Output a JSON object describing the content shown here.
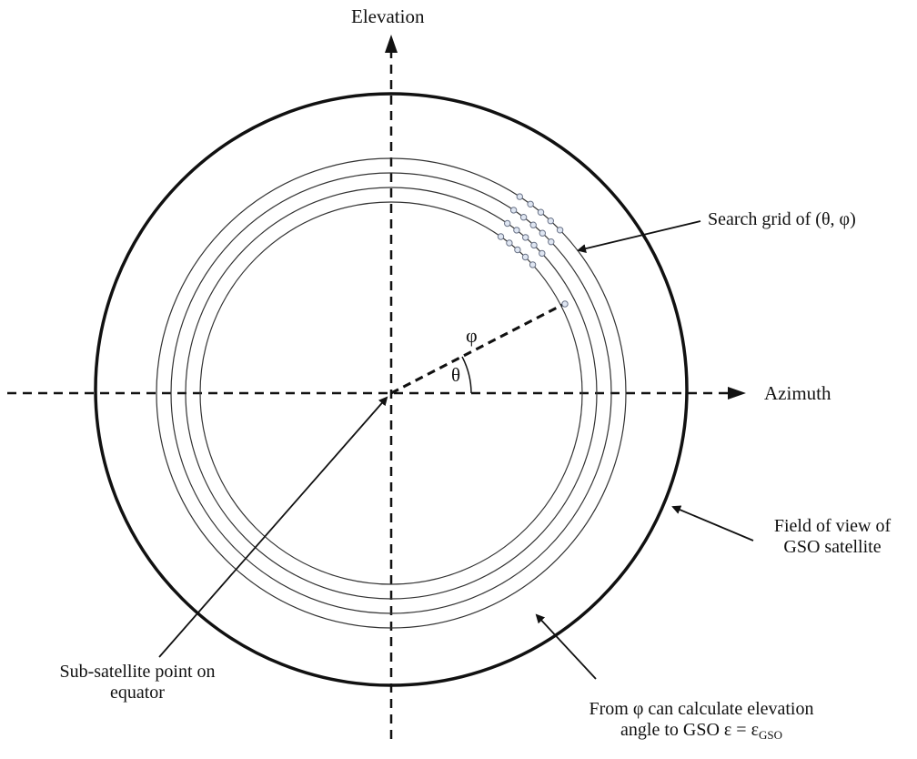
{
  "labels": {
    "elevation": "Elevation",
    "azimuth": "Azimuth",
    "search_grid": "Search grid of (θ, φ)",
    "fov_line1": "Field of view of",
    "fov_line2": "GSO satellite",
    "subsat_line1": "Sub-satellite point on",
    "subsat_line2": "equator",
    "from_phi_line1": "From φ can calculate elevation",
    "from_phi_line2_prefix": "angle to GSO ε = ε",
    "from_phi_line2_sub": "GSO",
    "phi": "φ",
    "theta": "θ"
  }
}
